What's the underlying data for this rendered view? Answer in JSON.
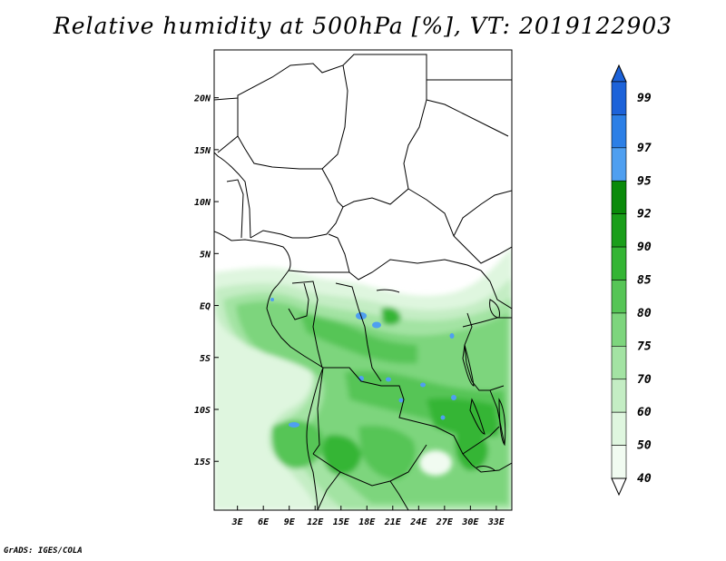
{
  "title": "Relative humidity at 500hPa [%], VT: 2019122903",
  "credit": "GrADS: IGES/COLA",
  "map": {
    "lon_labels": [
      "3E",
      "6E",
      "9E",
      "12E",
      "15E",
      "18E",
      "21E",
      "24E",
      "27E",
      "30E",
      "33E"
    ],
    "lon_values": [
      3,
      6,
      9,
      12,
      15,
      18,
      21,
      24,
      27,
      30,
      33
    ],
    "lat_labels": [
      "20N",
      "15N",
      "10N",
      "5N",
      "EQ",
      "5S",
      "10S",
      "15S"
    ],
    "lat_values": [
      20,
      15,
      10,
      5,
      0,
      -5,
      -10,
      -15
    ],
    "lon_range": [
      0.3,
      34.8
    ],
    "lat_range": [
      -19.7,
      24.6
    ]
  },
  "colorbar": {
    "levels": [
      "99",
      "97",
      "95",
      "92",
      "90",
      "85",
      "80",
      "75",
      "70",
      "60",
      "50",
      "40"
    ],
    "colors": [
      "#1c62d9",
      "#2c7fe6",
      "#4f9ff0",
      "#0a8a0a",
      "#1a9e1a",
      "#34b534",
      "#56c556",
      "#7dd57d",
      "#a3e3a3",
      "#c4edc4",
      "#dff6df",
      "#f1fbf1"
    ]
  }
}
